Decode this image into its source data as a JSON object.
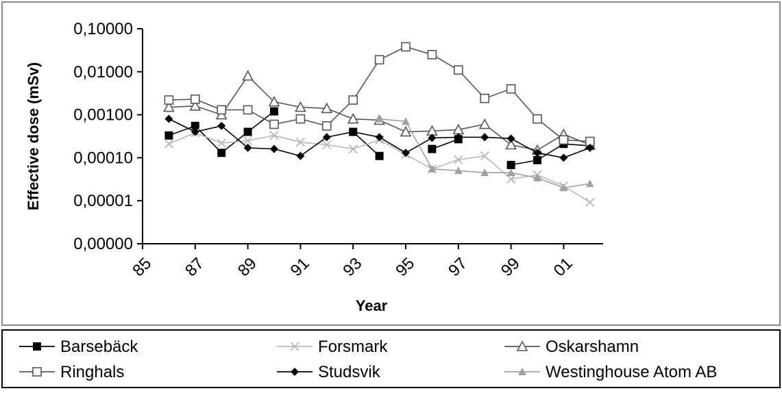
{
  "chart_data": {
    "type": "line",
    "title": "",
    "xlabel": "Year",
    "ylabel": "Effective dose (mSv)",
    "y_scale": "log",
    "ylim": [
      1e-06,
      0.1
    ],
    "yticks": [
      0.1,
      0.01,
      0.001,
      0.0001,
      1e-05,
      1e-06
    ],
    "ytick_labels": [
      "0,10000",
      "0,01000",
      "0,00100",
      "0,00010",
      "0,00001",
      "0,00000"
    ],
    "x": [
      1986,
      1987,
      1988,
      1989,
      1990,
      1991,
      1992,
      1993,
      1994,
      1995,
      1996,
      1997,
      1998,
      1999,
      2000,
      2001,
      2002
    ],
    "xticks": [
      1985,
      1987,
      1989,
      1991,
      1993,
      1995,
      1997,
      1999,
      2001
    ],
    "xtick_labels": [
      "85",
      "87",
      "89",
      "91",
      "93",
      "95",
      "97",
      "99",
      "01"
    ],
    "grid": false,
    "legend_position": "bottom",
    "series": [
      {
        "name": "Barsebäck",
        "marker": "filled-square",
        "color": "#000000",
        "values": [
          0.00033,
          0.00055,
          0.00013,
          0.0004,
          0.0012,
          null,
          null,
          0.0004,
          0.00011,
          null,
          0.00016,
          0.00027,
          null,
          6.8e-05,
          8.8e-05,
          0.00021,
          0.00019
        ]
      },
      {
        "name": "Forsmark",
        "marker": "x",
        "color": "#b8b8b8",
        "values": [
          0.00021,
          0.00038,
          0.00022,
          0.00025,
          0.00033,
          0.00023,
          0.0002,
          0.00016,
          0.00026,
          0.00012,
          5.5e-05,
          9e-05,
          0.00011,
          3.2e-05,
          4e-05,
          2.2e-05,
          9.2e-06
        ]
      },
      {
        "name": "Oskarshamn",
        "marker": "open-triangle",
        "color": "#555555",
        "values": [
          0.0015,
          0.0016,
          0.001,
          0.008,
          0.002,
          0.0015,
          0.0014,
          0.0008,
          0.00075,
          0.0004,
          0.00042,
          0.00045,
          0.0006,
          0.0002,
          0.00015,
          0.00035,
          0.0002
        ]
      },
      {
        "name": "Ringhals",
        "marker": "open-square",
        "color": "#555555",
        "values": [
          0.0022,
          0.0023,
          0.0013,
          0.0013,
          0.0006,
          0.0008,
          0.00055,
          0.0022,
          0.019,
          0.038,
          0.025,
          0.011,
          0.0024,
          0.004,
          0.0008,
          0.00026,
          0.00024
        ]
      },
      {
        "name": "Studsvik",
        "marker": "filled-diamond",
        "color": "#000000",
        "values": [
          0.0008,
          0.0004,
          0.00055,
          0.00017,
          0.00016,
          0.00011,
          0.0003,
          0.0004,
          0.0003,
          0.00013,
          0.00029,
          0.0003,
          0.0003,
          0.00028,
          0.00013,
          0.0001,
          0.00017
        ]
      },
      {
        "name": "Westinghouse Atom AB",
        "marker": "filled-triangle",
        "color": "#a0a0a0",
        "values": [
          null,
          null,
          null,
          null,
          null,
          null,
          null,
          null,
          0.0008,
          0.0007,
          5.5e-05,
          5e-05,
          4.5e-05,
          4.5e-05,
          3.4e-05,
          2e-05,
          2.5e-05
        ]
      }
    ]
  }
}
